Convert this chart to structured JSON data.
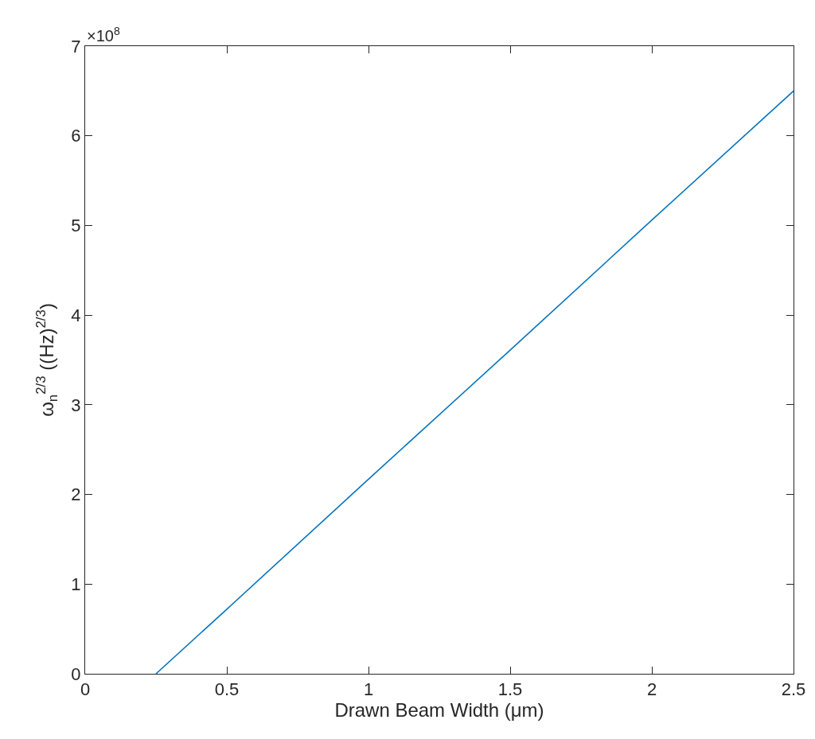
{
  "chart_data": {
    "type": "line",
    "xlabel": "Drawn Beam Width (μm)",
    "ylabel": "ω$_{n}$$^{2/3}$ ((Hz)$^{2/3}$)",
    "annotations": [
      "×10$^{8}$"
    ],
    "x": [
      0.25,
      0.5,
      1,
      1.5,
      2,
      2.5
    ],
    "series": [
      {
        "color": "#0072bd",
        "values": [
          0,
          0.72,
          2.17,
          3.61,
          5.06,
          6.5
        ]
      }
    ],
    "xlim": [
      0,
      2.5
    ],
    "xticks": [
      0,
      0.5,
      1,
      1.5,
      2,
      2.5
    ],
    "ylim": [
      0,
      7
    ],
    "yticks": [
      0,
      1,
      2,
      3,
      4,
      5,
      6,
      7
    ],
    "grid": false,
    "marker": "none",
    "line_style": "solid"
  }
}
